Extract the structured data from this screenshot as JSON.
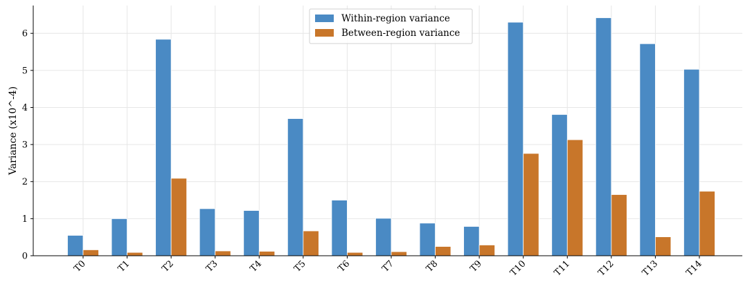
{
  "chart_data": {
    "type": "bar",
    "title": "",
    "xlabel": "",
    "ylabel": "Variance (x10^-4)",
    "categories": [
      "T0",
      "T1",
      "T2",
      "T3",
      "T4",
      "T5",
      "T6",
      "T7",
      "T8",
      "T9",
      "T10",
      "T11",
      "T12",
      "T13",
      "T14"
    ],
    "series": [
      {
        "name": "Within-region variance",
        "color": "#4a8ac4",
        "values": [
          0.55,
          1.0,
          5.84,
          1.27,
          1.22,
          3.7,
          1.5,
          1.01,
          0.88,
          0.79,
          6.3,
          3.81,
          6.42,
          5.72,
          5.03
        ]
      },
      {
        "name": "Between-region variance",
        "color": "#c8762a",
        "values": [
          0.16,
          0.09,
          2.09,
          0.13,
          0.12,
          0.67,
          0.09,
          0.11,
          0.25,
          0.29,
          2.76,
          3.13,
          1.65,
          0.51,
          1.74
        ]
      }
    ],
    "ylim": [
      0,
      6.75
    ],
    "yticks": [
      0,
      1,
      2,
      3,
      4,
      5,
      6
    ],
    "grid": true,
    "legend_position": "top-center"
  }
}
